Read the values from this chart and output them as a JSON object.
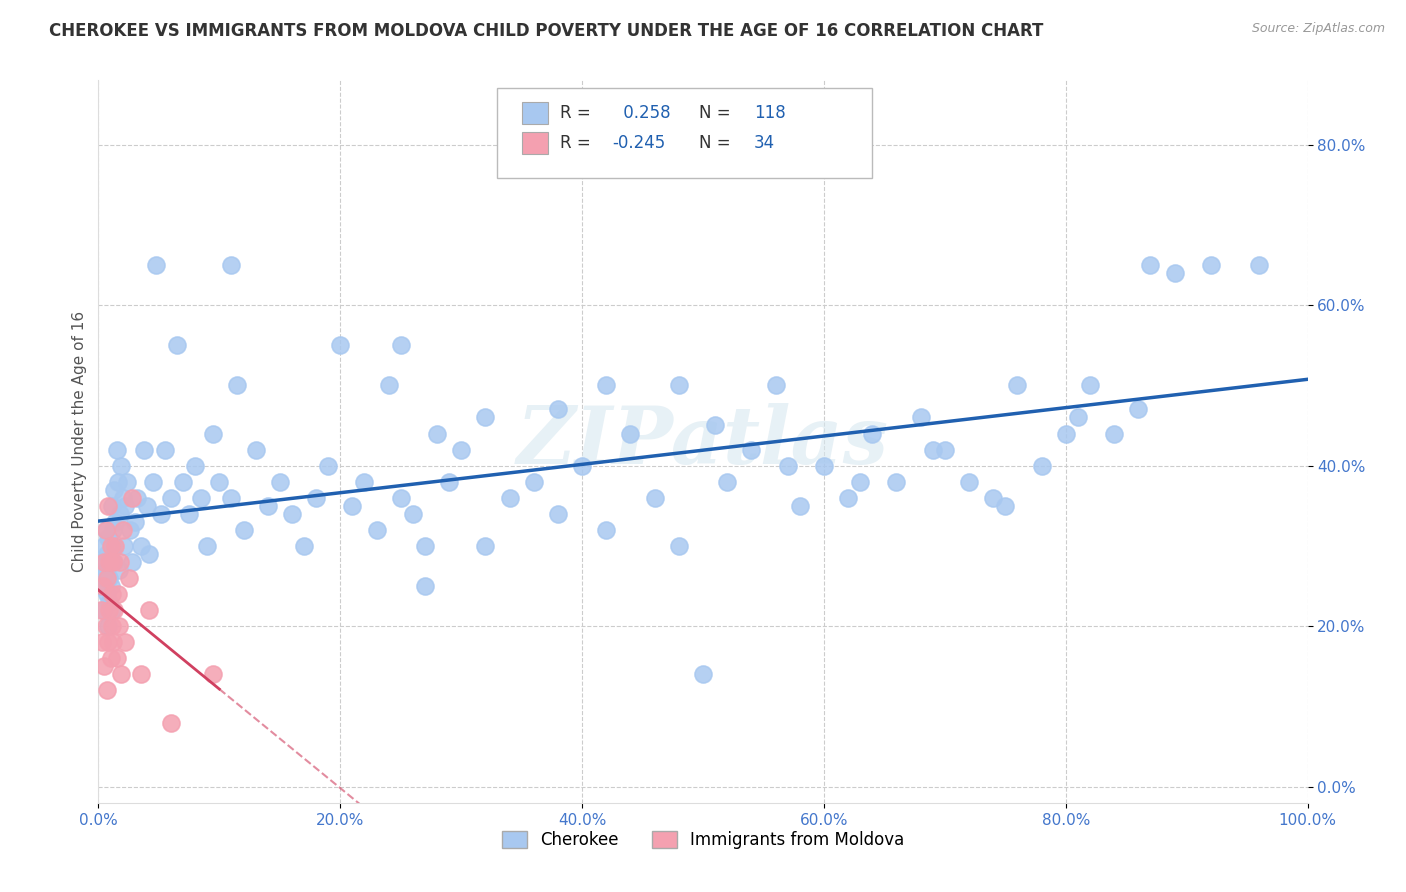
{
  "title": "CHEROKEE VS IMMIGRANTS FROM MOLDOVA CHILD POVERTY UNDER THE AGE OF 16 CORRELATION CHART",
  "source": "Source: ZipAtlas.com",
  "ylabel": "Child Poverty Under the Age of 16",
  "xlim": [
    0.0,
    1.0
  ],
  "ylim": [
    -0.02,
    0.88
  ],
  "xticks": [
    0.0,
    0.2,
    0.4,
    0.6,
    0.8,
    1.0
  ],
  "xticklabels": [
    "0.0%",
    "20.0%",
    "40.0%",
    "60.0%",
    "80.0%",
    "100.0%"
  ],
  "yticks": [
    0.0,
    0.2,
    0.4,
    0.6,
    0.8
  ],
  "yticklabels": [
    "0.0%",
    "20.0%",
    "40.0%",
    "60.0%",
    "80.0%"
  ],
  "legend_labels": [
    "Cherokee",
    "Immigrants from Moldova"
  ],
  "cherokee_color": "#a8c8f0",
  "moldova_color": "#f4a0b0",
  "line_cherokee_color": "#2060b0",
  "line_moldova_color": "#d04060",
  "R_cherokee": 0.258,
  "N_cherokee": 118,
  "R_moldova": -0.245,
  "N_moldova": 34,
  "cherokee_x": [
    0.002,
    0.003,
    0.004,
    0.005,
    0.005,
    0.006,
    0.006,
    0.007,
    0.007,
    0.008,
    0.008,
    0.009,
    0.009,
    0.01,
    0.01,
    0.011,
    0.011,
    0.012,
    0.012,
    0.013,
    0.013,
    0.014,
    0.015,
    0.016,
    0.017,
    0.018,
    0.019,
    0.02,
    0.021,
    0.022,
    0.024,
    0.026,
    0.028,
    0.03,
    0.032,
    0.035,
    0.038,
    0.04,
    0.042,
    0.045,
    0.048,
    0.052,
    0.055,
    0.06,
    0.065,
    0.07,
    0.075,
    0.08,
    0.085,
    0.09,
    0.095,
    0.1,
    0.11,
    0.12,
    0.13,
    0.14,
    0.15,
    0.16,
    0.17,
    0.18,
    0.19,
    0.2,
    0.21,
    0.22,
    0.23,
    0.24,
    0.25,
    0.26,
    0.27,
    0.28,
    0.29,
    0.3,
    0.32,
    0.34,
    0.36,
    0.38,
    0.4,
    0.42,
    0.44,
    0.46,
    0.48,
    0.5,
    0.52,
    0.54,
    0.56,
    0.58,
    0.6,
    0.62,
    0.64,
    0.66,
    0.68,
    0.7,
    0.72,
    0.74,
    0.76,
    0.78,
    0.8,
    0.82,
    0.84,
    0.86,
    0.11,
    0.115,
    0.48,
    0.25,
    0.38,
    0.42,
    0.32,
    0.27,
    0.51,
    0.57,
    0.63,
    0.69,
    0.75,
    0.81,
    0.87,
    0.89,
    0.92,
    0.96
  ],
  "cherokee_y": [
    0.25,
    0.28,
    0.22,
    0.3,
    0.26,
    0.32,
    0.27,
    0.24,
    0.29,
    0.31,
    0.2,
    0.23,
    0.26,
    0.28,
    0.25,
    0.22,
    0.35,
    0.3,
    0.32,
    0.28,
    0.37,
    0.33,
    0.42,
    0.38,
    0.27,
    0.34,
    0.4,
    0.36,
    0.3,
    0.35,
    0.38,
    0.32,
    0.28,
    0.33,
    0.36,
    0.3,
    0.42,
    0.35,
    0.29,
    0.38,
    0.65,
    0.34,
    0.42,
    0.36,
    0.55,
    0.38,
    0.34,
    0.4,
    0.36,
    0.3,
    0.44,
    0.38,
    0.36,
    0.32,
    0.42,
    0.35,
    0.38,
    0.34,
    0.3,
    0.36,
    0.4,
    0.55,
    0.35,
    0.38,
    0.32,
    0.5,
    0.36,
    0.34,
    0.3,
    0.44,
    0.38,
    0.42,
    0.46,
    0.36,
    0.38,
    0.34,
    0.4,
    0.32,
    0.44,
    0.36,
    0.3,
    0.14,
    0.38,
    0.42,
    0.5,
    0.35,
    0.4,
    0.36,
    0.44,
    0.38,
    0.46,
    0.42,
    0.38,
    0.36,
    0.5,
    0.4,
    0.44,
    0.5,
    0.44,
    0.47,
    0.65,
    0.5,
    0.5,
    0.55,
    0.47,
    0.5,
    0.3,
    0.25,
    0.45,
    0.4,
    0.38,
    0.42,
    0.35,
    0.46,
    0.65,
    0.64,
    0.65,
    0.65
  ],
  "moldova_x": [
    0.002,
    0.003,
    0.004,
    0.005,
    0.005,
    0.006,
    0.006,
    0.007,
    0.007,
    0.008,
    0.008,
    0.009,
    0.009,
    0.01,
    0.01,
    0.011,
    0.011,
    0.012,
    0.012,
    0.013,
    0.014,
    0.015,
    0.016,
    0.017,
    0.018,
    0.019,
    0.02,
    0.022,
    0.025,
    0.028,
    0.035,
    0.042,
    0.06,
    0.095
  ],
  "moldova_y": [
    0.22,
    0.18,
    0.25,
    0.15,
    0.28,
    0.2,
    0.32,
    0.12,
    0.26,
    0.18,
    0.35,
    0.22,
    0.28,
    0.16,
    0.3,
    0.24,
    0.2,
    0.28,
    0.18,
    0.22,
    0.3,
    0.16,
    0.24,
    0.2,
    0.28,
    0.14,
    0.32,
    0.18,
    0.26,
    0.36,
    0.14,
    0.22,
    0.08,
    0.14
  ],
  "watermark_text": "ZIPatlas",
  "background_color": "#ffffff",
  "grid_color": "#cccccc",
  "tick_color": "#4477cc",
  "title_fontsize": 12,
  "label_fontsize": 11,
  "tick_fontsize": 11,
  "legend_fontsize": 12
}
